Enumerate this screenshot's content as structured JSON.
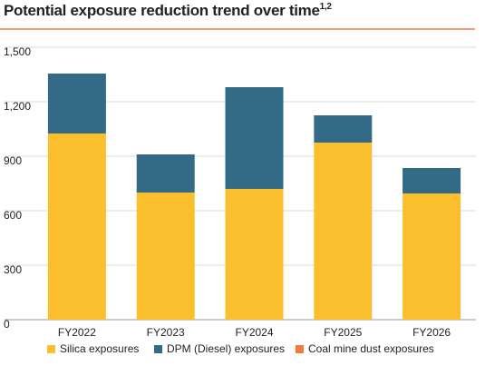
{
  "chart_data": {
    "type": "stacked-bar",
    "title": "Potential exposure reduction trend over time",
    "title_superscript": "1,2",
    "categories": [
      "FY2022",
      "FY2023",
      "FY2024",
      "FY2025",
      "FY2026"
    ],
    "series": [
      {
        "name": "Silica exposures",
        "color": "#fbbf2e",
        "values": [
          1025,
          700,
          720,
          975,
          695
        ]
      },
      {
        "name": "DPM (Diesel) exposures",
        "color": "#336a86",
        "values": [
          330,
          210,
          560,
          150,
          140
        ]
      },
      {
        "name": "Coal mine dust exposures",
        "color": "#f07b3a",
        "values": [
          0,
          0,
          0,
          0,
          0
        ]
      }
    ],
    "ylim": [
      0,
      1500
    ],
    "yticks": [
      0,
      300,
      600,
      900,
      {
        "value": 1200,
        "label": "1,200"
      },
      {
        "value": 1500,
        "label": "1,500"
      }
    ],
    "grid": true
  }
}
